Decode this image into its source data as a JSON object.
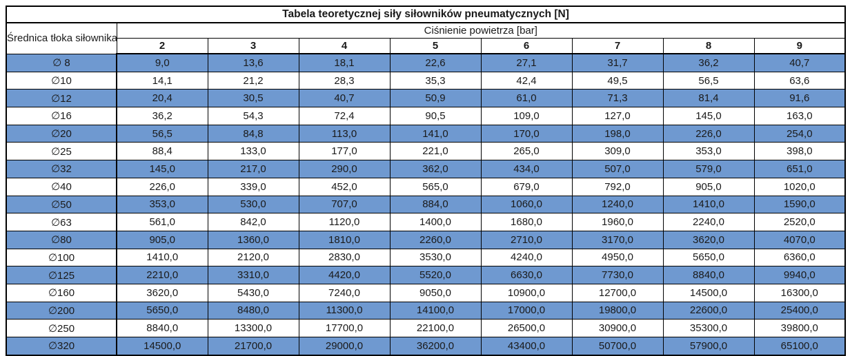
{
  "table": {
    "title": "Tabela teoretycznej siły siłowników pneumatycznych [N]",
    "diameter_header": "Średnica tłoka\nsiłownika",
    "pressure_label": "Ciśnienie powietrza [bar]",
    "pressures": [
      "2",
      "3",
      "4",
      "5",
      "6",
      "7",
      "8",
      "9"
    ],
    "rows": [
      {
        "diameter": "∅ 8",
        "values": [
          "9,0",
          "13,6",
          "18,1",
          "22,6",
          "27,1",
          "31,7",
          "36,2",
          "40,7"
        ]
      },
      {
        "diameter": "∅10",
        "values": [
          "14,1",
          "21,2",
          "28,3",
          "35,3",
          "42,4",
          "49,5",
          "56,5",
          "63,6"
        ]
      },
      {
        "diameter": "∅12",
        "values": [
          "20,4",
          "30,5",
          "40,7",
          "50,9",
          "61,0",
          "71,3",
          "81,4",
          "91,6"
        ]
      },
      {
        "diameter": "∅16",
        "values": [
          "36,2",
          "54,3",
          "72,4",
          "90,5",
          "109,0",
          "127,0",
          "145,0",
          "163,0"
        ]
      },
      {
        "diameter": "∅20",
        "values": [
          "56,5",
          "84,8",
          "113,0",
          "141,0",
          "170,0",
          "198,0",
          "226,0",
          "254,0"
        ]
      },
      {
        "diameter": "∅25",
        "values": [
          "88,4",
          "133,0",
          "177,0",
          "221,0",
          "265,0",
          "309,0",
          "353,0",
          "398,0"
        ]
      },
      {
        "diameter": "∅32",
        "values": [
          "145,0",
          "217,0",
          "290,0",
          "362,0",
          "434,0",
          "507,0",
          "579,0",
          "651,0"
        ]
      },
      {
        "diameter": "∅40",
        "values": [
          "226,0",
          "339,0",
          "452,0",
          "565,0",
          "679,0",
          "792,0",
          "905,0",
          "1020,0"
        ]
      },
      {
        "diameter": "∅50",
        "values": [
          "353,0",
          "530,0",
          "707,0",
          "884,0",
          "1060,0",
          "1240,0",
          "1410,0",
          "1590,0"
        ]
      },
      {
        "diameter": "∅63",
        "values": [
          "561,0",
          "842,0",
          "1120,0",
          "1400,0",
          "1680,0",
          "1960,0",
          "2240,0",
          "2520,0"
        ]
      },
      {
        "diameter": "∅80",
        "values": [
          "905,0",
          "1360,0",
          "1810,0",
          "2260,0",
          "2710,0",
          "3170,0",
          "3620,0",
          "4070,0"
        ]
      },
      {
        "diameter": "∅100",
        "values": [
          "1410,0",
          "2120,0",
          "2830,0",
          "3530,0",
          "4240,0",
          "4950,0",
          "5650,0",
          "6360,0"
        ]
      },
      {
        "diameter": "∅125",
        "values": [
          "2210,0",
          "3310,0",
          "4420,0",
          "5520,0",
          "6630,0",
          "7730,0",
          "8840,0",
          "9940,0"
        ]
      },
      {
        "diameter": "∅160",
        "values": [
          "3620,0",
          "5430,0",
          "7240,0",
          "9050,0",
          "10900,0",
          "12700,0",
          "14500,0",
          "16300,0"
        ]
      },
      {
        "diameter": "∅200",
        "values": [
          "5650,0",
          "8480,0",
          "11300,0",
          "14100,0",
          "17000,0",
          "19800,0",
          "22600,0",
          "25400,0"
        ]
      },
      {
        "diameter": "∅250",
        "values": [
          "8840,0",
          "13300,0",
          "17700,0",
          "22100,0",
          "26500,0",
          "30900,0",
          "35300,0",
          "39800,0"
        ]
      },
      {
        "diameter": "∅320",
        "values": [
          "14500,0",
          "21700,0",
          "29000,0",
          "36200,0",
          "43400,0",
          "50700,0",
          "57900,0",
          "65100,0"
        ]
      }
    ]
  },
  "colors": {
    "row_highlight_blue": "#6F99D0",
    "grid_border": "#000000",
    "text": "#1a1a1a"
  },
  "chart_data": {
    "type": "table",
    "title": "Tabela teoretycznej siły siłowników pneumatycznych [N]",
    "row_header": "Średnica tłoka siłownika",
    "column_group_header": "Ciśnienie powietrza [bar]",
    "columns_pressure_bar": [
      2,
      3,
      4,
      5,
      6,
      7,
      8,
      9
    ],
    "rows": [
      {
        "diameter_mm": 8,
        "forces_N": [
          9.0,
          13.6,
          18.1,
          22.6,
          27.1,
          31.7,
          36.2,
          40.7
        ]
      },
      {
        "diameter_mm": 10,
        "forces_N": [
          14.1,
          21.2,
          28.3,
          35.3,
          42.4,
          49.5,
          56.5,
          63.6
        ]
      },
      {
        "diameter_mm": 12,
        "forces_N": [
          20.4,
          30.5,
          40.7,
          50.9,
          61.0,
          71.3,
          81.4,
          91.6
        ]
      },
      {
        "diameter_mm": 16,
        "forces_N": [
          36.2,
          54.3,
          72.4,
          90.5,
          109.0,
          127.0,
          145.0,
          163.0
        ]
      },
      {
        "diameter_mm": 20,
        "forces_N": [
          56.5,
          84.8,
          113.0,
          141.0,
          170.0,
          198.0,
          226.0,
          254.0
        ]
      },
      {
        "diameter_mm": 25,
        "forces_N": [
          88.4,
          133.0,
          177.0,
          221.0,
          265.0,
          309.0,
          353.0,
          398.0
        ]
      },
      {
        "diameter_mm": 32,
        "forces_N": [
          145.0,
          217.0,
          290.0,
          362.0,
          434.0,
          507.0,
          579.0,
          651.0
        ]
      },
      {
        "diameter_mm": 40,
        "forces_N": [
          226.0,
          339.0,
          452.0,
          565.0,
          679.0,
          792.0,
          905.0,
          1020.0
        ]
      },
      {
        "diameter_mm": 50,
        "forces_N": [
          353.0,
          530.0,
          707.0,
          884.0,
          1060.0,
          1240.0,
          1410.0,
          1590.0
        ]
      },
      {
        "diameter_mm": 63,
        "forces_N": [
          561.0,
          842.0,
          1120.0,
          1400.0,
          1680.0,
          1960.0,
          2240.0,
          2520.0
        ]
      },
      {
        "diameter_mm": 80,
        "forces_N": [
          905.0,
          1360.0,
          1810.0,
          2260.0,
          2710.0,
          3170.0,
          3620.0,
          4070.0
        ]
      },
      {
        "diameter_mm": 100,
        "forces_N": [
          1410.0,
          2120.0,
          2830.0,
          3530.0,
          4240.0,
          4950.0,
          5650.0,
          6360.0
        ]
      },
      {
        "diameter_mm": 125,
        "forces_N": [
          2210.0,
          3310.0,
          4420.0,
          5520.0,
          6630.0,
          7730.0,
          8840.0,
          9940.0
        ]
      },
      {
        "diameter_mm": 160,
        "forces_N": [
          3620.0,
          5430.0,
          7240.0,
          9050.0,
          10900.0,
          12700.0,
          14500.0,
          16300.0
        ]
      },
      {
        "diameter_mm": 200,
        "forces_N": [
          5650.0,
          8480.0,
          11300.0,
          14100.0,
          17000.0,
          19800.0,
          22600.0,
          25400.0
        ]
      },
      {
        "diameter_mm": 250,
        "forces_N": [
          8840.0,
          13300.0,
          17700.0,
          22100.0,
          26500.0,
          30900.0,
          35300.0,
          39800.0
        ]
      },
      {
        "diameter_mm": 320,
        "forces_N": [
          14500.0,
          21700.0,
          29000.0,
          36200.0,
          43400.0,
          50700.0,
          57900.0,
          65100.0
        ]
      }
    ],
    "layout": {
      "striping": "alternating rows blue/white starting blue",
      "grid": true
    }
  }
}
